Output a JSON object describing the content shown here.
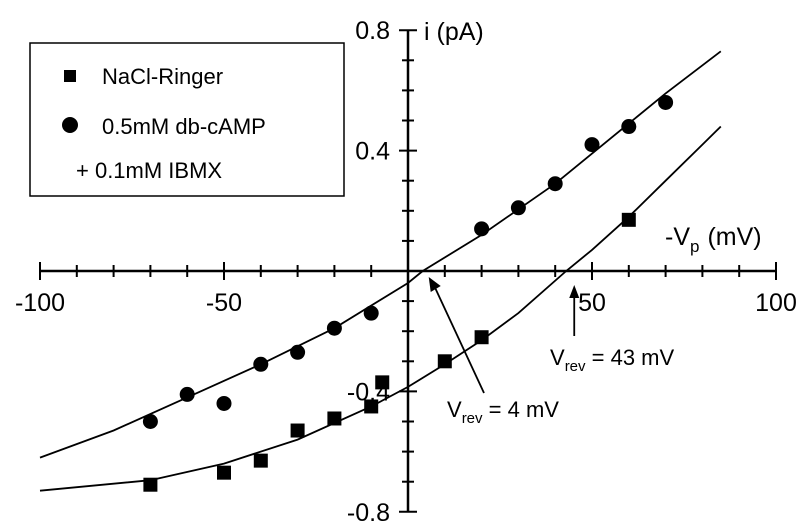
{
  "chart_data": {
    "type": "scatter",
    "xlabel": "-V",
    "xlabel_sub": "p",
    "xlabel_unit": "(mV)",
    "ylabel": "i (pA)",
    "xlim": [
      -100,
      100
    ],
    "ylim": [
      -0.8,
      0.8
    ],
    "x_ticks": [
      -100,
      -50,
      50,
      100
    ],
    "x_tick_labels": [
      "-100",
      "-50",
      "50",
      "100"
    ],
    "y_ticks": [
      0.8,
      0.4,
      -0.4,
      -0.8
    ],
    "y_tick_labels": [
      "0.8",
      "0.4",
      "-0.4",
      "-0.8"
    ],
    "grid": false,
    "legend_position": "top-left",
    "series": [
      {
        "name": "NaCl-Ringer",
        "marker": "square",
        "points": [
          [
            -70,
            -0.71
          ],
          [
            -50,
            -0.67
          ],
          [
            -40,
            -0.63
          ],
          [
            -30,
            -0.53
          ],
          [
            -20,
            -0.49
          ],
          [
            -10,
            -0.45
          ],
          [
            -7,
            -0.37
          ],
          [
            10,
            -0.3
          ],
          [
            20,
            -0.22
          ],
          [
            60,
            0.17
          ]
        ],
        "fit": [
          [
            -100,
            -0.73
          ],
          [
            -70,
            -0.695
          ],
          [
            -50,
            -0.64
          ],
          [
            -30,
            -0.56
          ],
          [
            -10,
            -0.45
          ],
          [
            0,
            -0.385
          ],
          [
            10,
            -0.31
          ],
          [
            20,
            -0.23
          ],
          [
            30,
            -0.14
          ],
          [
            43,
            0.0
          ],
          [
            50,
            0.07
          ],
          [
            60,
            0.18
          ],
          [
            70,
            0.3
          ],
          [
            80,
            0.42
          ],
          [
            85,
            0.48
          ]
        ]
      },
      {
        "name": "0.5mM db-cAMP",
        "name_line2": "+ 0.1mM IBMX",
        "marker": "circle",
        "points": [
          [
            -70,
            -0.5
          ],
          [
            -60,
            -0.41
          ],
          [
            -50,
            -0.44
          ],
          [
            -40,
            -0.31
          ],
          [
            -30,
            -0.27
          ],
          [
            -20,
            -0.19
          ],
          [
            -10,
            -0.14
          ],
          [
            20,
            0.14
          ],
          [
            30,
            0.21
          ],
          [
            40,
            0.29
          ],
          [
            50,
            0.42
          ],
          [
            60,
            0.48
          ],
          [
            70,
            0.56
          ]
        ],
        "fit": [
          [
            -100,
            -0.62
          ],
          [
            -80,
            -0.53
          ],
          [
            -60,
            -0.42
          ],
          [
            -40,
            -0.31
          ],
          [
            -20,
            -0.19
          ],
          [
            0,
            -0.04
          ],
          [
            4,
            0.0
          ],
          [
            20,
            0.12
          ],
          [
            40,
            0.29
          ],
          [
            60,
            0.49
          ],
          [
            70,
            0.59
          ],
          [
            85,
            0.73
          ]
        ]
      }
    ],
    "annotations": [
      {
        "name": "vrev-4",
        "label_main": "V",
        "label_sub": "rev",
        "label_rest": " = 4 mV",
        "x": 4,
        "y": 0.0
      },
      {
        "name": "vrev-43",
        "label_main": "V",
        "label_sub": "rev",
        "label_rest": " = 43 mV",
        "x": 43,
        "y": 0.0
      }
    ]
  }
}
